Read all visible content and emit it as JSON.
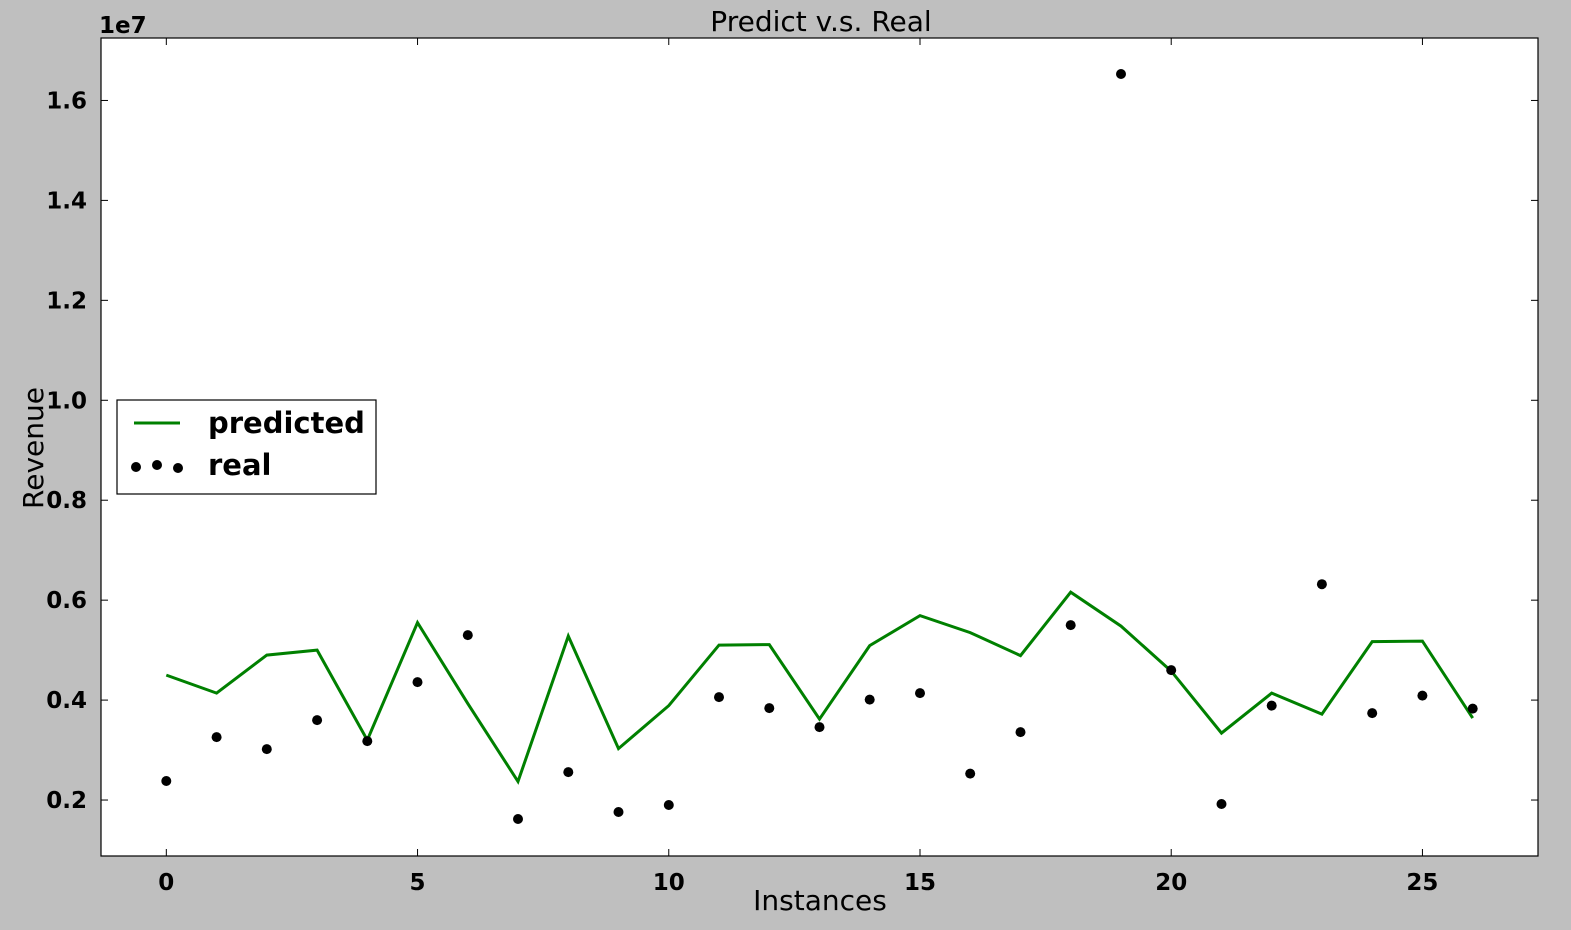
{
  "colors": {
    "background": "#bfbfbf",
    "plot_background": "#ffffff",
    "predicted_line": "#008000",
    "real_points": "#000000"
  },
  "chart_data": {
    "type": "line",
    "title": "Predict v.s. Real",
    "xlabel": "Instances",
    "ylabel": "Revenue",
    "y_offset_label": "1e7",
    "xlim": [
      -1.3,
      27.3
    ],
    "ylim": [
      880000,
      17250000
    ],
    "x_ticks": [
      0,
      5,
      10,
      15,
      20,
      25
    ],
    "x_tick_labels": [
      "0",
      "5",
      "10",
      "15",
      "20",
      "25"
    ],
    "y_ticks": [
      2000000,
      4000000,
      6000000,
      8000000,
      10000000,
      12000000,
      14000000,
      16000000
    ],
    "y_tick_labels": [
      "0.2",
      "0.4",
      "0.6",
      "0.8",
      "1.0",
      "1.2",
      "1.4",
      "1.6"
    ],
    "grid": false,
    "legend_position": "center-left",
    "series": [
      {
        "name": "predicted",
        "style": "line",
        "color": "#008000",
        "x": [
          0,
          1,
          2,
          3,
          4,
          5,
          6,
          7,
          8,
          9,
          10,
          11,
          12,
          13,
          14,
          15,
          16,
          17,
          18,
          19,
          20,
          21,
          22,
          23,
          24,
          25,
          26
        ],
        "values": [
          4500000,
          4140000,
          4900000,
          5000000,
          3200000,
          5550000,
          3930000,
          2370000,
          5280000,
          3030000,
          3890000,
          5100000,
          5110000,
          3620000,
          5090000,
          5690000,
          5350000,
          4890000,
          6160000,
          5480000,
          4580000,
          3340000,
          4140000,
          3720000,
          5170000,
          5180000,
          3640000
        ]
      },
      {
        "name": "real",
        "style": "points",
        "color": "#000000",
        "x": [
          0,
          1,
          2,
          3,
          4,
          5,
          6,
          7,
          8,
          9,
          10,
          11,
          12,
          13,
          14,
          15,
          16,
          17,
          18,
          19,
          20,
          21,
          22,
          23,
          24,
          25,
          26
        ],
        "values": [
          2380000,
          3260000,
          3020000,
          3600000,
          3180000,
          4360000,
          5300000,
          1620000,
          2560000,
          1760000,
          1900000,
          4060000,
          3840000,
          3460000,
          4010000,
          4140000,
          2530000,
          3360000,
          5500000,
          16530000,
          4600000,
          1920000,
          3890000,
          6320000,
          3740000,
          4090000,
          3830000
        ]
      }
    ]
  }
}
